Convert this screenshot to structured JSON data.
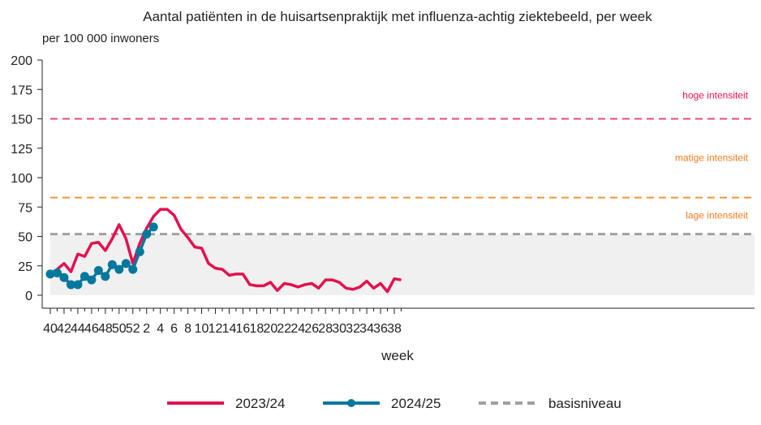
{
  "chart_data": {
    "type": "line",
    "title": "Aantal patiënten in de huisartsenpraktijk met influenza-achtig ziektebeeld, per week",
    "subtitle": "per 100 000 inwoners",
    "xlabel": "week",
    "ylabel": "",
    "ylim": [
      0,
      200
    ],
    "yticks": [
      0,
      25,
      50,
      75,
      100,
      125,
      150,
      175,
      200
    ],
    "weeks": [
      40,
      41,
      42,
      43,
      44,
      45,
      46,
      47,
      48,
      49,
      50,
      51,
      52,
      1,
      2,
      3,
      4,
      5,
      6,
      7,
      8,
      9,
      10,
      11,
      12,
      13,
      14,
      15,
      16,
      17,
      18,
      19,
      20,
      21,
      22,
      23,
      24,
      25,
      26,
      27,
      28,
      29,
      30,
      31,
      32,
      33,
      34,
      35,
      36,
      37,
      38,
      39
    ],
    "xtick_labels": [
      "40",
      "42",
      "44",
      "46",
      "48",
      "50",
      "52",
      "2",
      "4",
      "6",
      "8",
      "10",
      "12",
      "14",
      "16",
      "18",
      "20",
      "22",
      "24",
      "26",
      "28",
      "30",
      "32",
      "34",
      "36",
      "38"
    ],
    "series": [
      {
        "name": "2023/24",
        "color": "#e3104f",
        "style": "solid",
        "values": [
          18,
          22,
          27,
          20,
          35,
          33,
          44,
          45,
          38,
          48,
          60,
          48,
          27,
          44,
          57,
          67,
          73,
          73,
          68,
          56,
          49,
          41,
          40,
          27,
          23,
          22,
          17,
          18,
          18,
          9,
          8,
          8,
          11,
          4,
          10,
          9,
          7,
          9,
          10,
          6,
          13,
          13,
          11,
          6,
          5,
          7,
          12,
          6,
          10,
          3,
          14,
          13
        ]
      },
      {
        "name": "2024/25",
        "color": "#00789e",
        "style": "solid-markers",
        "values": [
          18,
          19,
          15,
          9,
          9,
          16,
          13,
          21,
          16,
          26,
          22,
          27,
          22,
          37,
          52,
          58
        ]
      },
      {
        "name": "basisniveau",
        "color": "#a0a0a0",
        "style": "dashed",
        "value": 52
      }
    ],
    "thresholds": [
      {
        "label": "lage intensiteit",
        "value": 83,
        "color": "#f59530"
      },
      {
        "label": "matige intensiteit",
        "value": 83,
        "color": "#f59530"
      },
      {
        "label": "hoge intensiteit",
        "value": 150,
        "color": "#ea4a7a"
      }
    ],
    "band_labels": [
      {
        "label": "hoge intensiteit",
        "y": 170,
        "color": "#e3104f"
      },
      {
        "label": "matige intensiteit",
        "y": 117,
        "color": "#f07b1f"
      },
      {
        "label": "lage intensiteit",
        "y": 68,
        "color": "#f07b1f"
      }
    ],
    "shaded_band": {
      "from": 0,
      "to": 52,
      "color": "#f0f0f0"
    },
    "grid": false,
    "legend": "bottom"
  }
}
